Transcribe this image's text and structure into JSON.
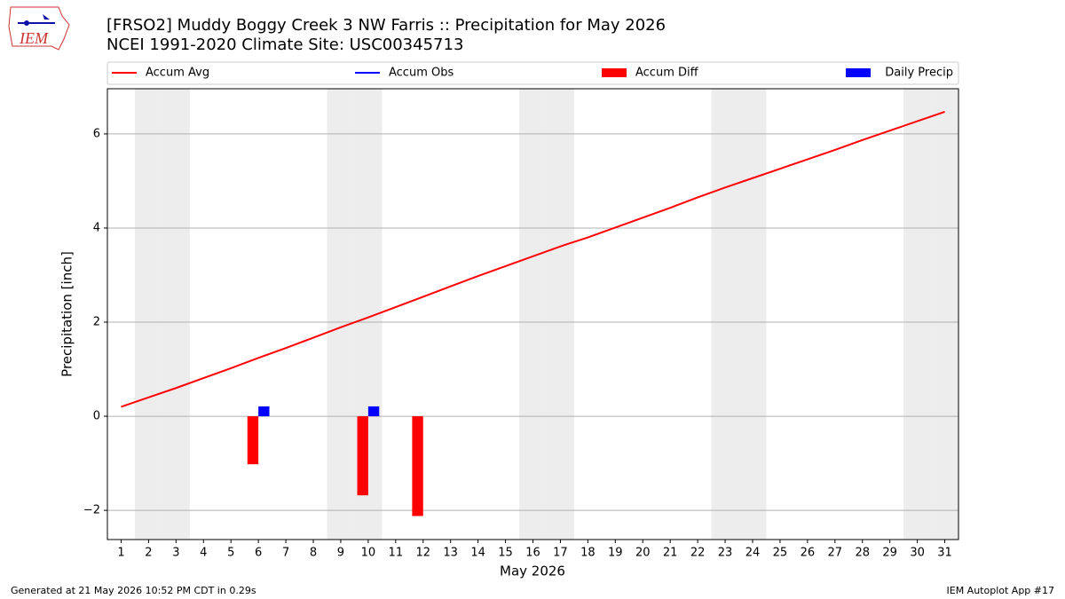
{
  "logo_text": "IEM",
  "footer_left": "Generated at 21 May 2026 10:52 PM CDT in 0.29s",
  "footer_right": "IEM Autoplot App #17",
  "chart_data": {
    "type": "line",
    "title": "[FRSO2] Muddy Boggy Creek 3 NW Farris :: Precipitation for May 2026",
    "subtitle": "NCEI 1991-2020 Climate Site: USC00345713",
    "x_label": "May 2026",
    "y_label": "Precipitation [inch]",
    "x": [
      1,
      2,
      3,
      4,
      5,
      6,
      7,
      8,
      9,
      10,
      11,
      12,
      13,
      14,
      15,
      16,
      17,
      18,
      19,
      20,
      21,
      22,
      23,
      24,
      25,
      26,
      27,
      28,
      29,
      30,
      31
    ],
    "xlim": [
      0.5,
      31.5
    ],
    "xticks": [
      1,
      2,
      3,
      4,
      5,
      6,
      7,
      8,
      9,
      10,
      11,
      12,
      13,
      14,
      15,
      16,
      17,
      18,
      19,
      20,
      21,
      22,
      23,
      24,
      25,
      26,
      27,
      28,
      29,
      30,
      31
    ],
    "ylim": [
      -2.62,
      6.96
    ],
    "yticks": [
      {
        "value": -2,
        "label": "−2"
      },
      0,
      2,
      4,
      6
    ],
    "grid": true,
    "weekend_days": [
      2,
      3,
      9,
      10,
      16,
      17,
      23,
      24,
      30,
      31
    ],
    "series": [
      {
        "name": "Accum Avg",
        "kind": "line",
        "color": "#ff0000",
        "values": [
          0.2,
          0.4,
          0.6,
          0.81,
          1.02,
          1.24,
          1.45,
          1.67,
          1.89,
          2.1,
          2.32,
          2.54,
          2.76,
          2.98,
          3.19,
          3.4,
          3.61,
          3.8,
          4.01,
          4.22,
          4.43,
          4.65,
          4.86,
          5.06,
          5.26,
          5.46,
          5.66,
          5.87,
          6.07,
          6.27,
          6.47
        ]
      },
      {
        "name": "Accum Obs",
        "kind": "line",
        "color": "#0000ff",
        "values": [
          null,
          null,
          null,
          null,
          null,
          null,
          null,
          null,
          null,
          null,
          null,
          null,
          null,
          null,
          null,
          null,
          null,
          null,
          null,
          null,
          null,
          null,
          null,
          null,
          null,
          null,
          null,
          null,
          null,
          null,
          null
        ]
      },
      {
        "name": "Accum Diff",
        "kind": "bar-left",
        "color": "#ff0000",
        "values": [
          null,
          null,
          null,
          null,
          null,
          -1.02,
          null,
          null,
          null,
          -1.68,
          null,
          -2.12,
          null,
          null,
          null,
          null,
          null,
          null,
          null,
          null,
          null,
          null,
          null,
          null,
          null,
          null,
          null,
          null,
          null,
          null,
          null
        ]
      },
      {
        "name": "Daily Precip",
        "kind": "bar-right",
        "color": "#0000ff",
        "values": [
          null,
          null,
          null,
          null,
          null,
          0.21,
          null,
          null,
          null,
          0.21,
          null,
          null,
          null,
          null,
          null,
          null,
          null,
          null,
          null,
          null,
          null,
          null,
          null,
          null,
          null,
          null,
          null,
          null,
          null,
          null,
          null
        ]
      }
    ]
  }
}
